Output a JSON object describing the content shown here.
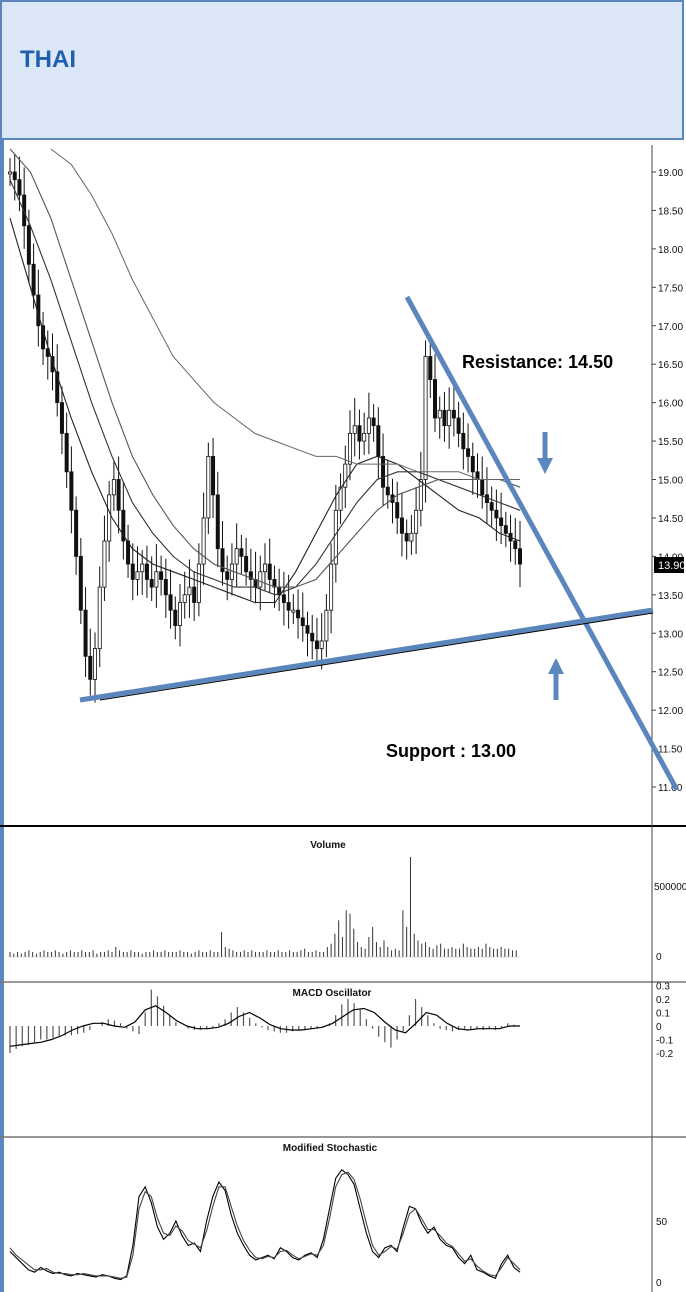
{
  "header": {
    "title": "THAI"
  },
  "colors": {
    "header_bg": "#dbe7f6",
    "header_border": "#5b86bd",
    "title": "#1f5fae",
    "trendline": "#5b86bd"
  },
  "chart_data": [
    {
      "type": "candlestick",
      "panel": "price",
      "ylim": [
        10.9,
        19.3
      ],
      "yticks": [
        "19.00",
        "18.50",
        "18.00",
        "17.50",
        "17.00",
        "16.50",
        "16.00",
        "15.50",
        "15.00",
        "14.50",
        "14.00",
        "13.50",
        "13.00",
        "12.50",
        "12.00",
        "11.50",
        "11.00"
      ],
      "last_price_label": "13.90",
      "close_series": [
        19.0,
        18.9,
        18.7,
        18.3,
        17.8,
        17.4,
        17.0,
        16.7,
        16.6,
        16.4,
        16.0,
        15.6,
        15.1,
        14.6,
        14.0,
        13.3,
        12.7,
        12.4,
        12.8,
        13.6,
        14.2,
        14.8,
        15.0,
        14.6,
        14.2,
        13.9,
        13.7,
        13.8,
        13.9,
        13.7,
        13.6,
        13.8,
        13.7,
        13.5,
        13.3,
        13.1,
        13.4,
        13.5,
        13.6,
        13.4,
        13.9,
        14.5,
        15.3,
        14.8,
        14.1,
        13.8,
        13.7,
        13.9,
        14.1,
        14.0,
        13.8,
        13.7,
        13.6,
        13.8,
        13.9,
        13.7,
        13.6,
        13.5,
        13.4,
        13.3,
        13.3,
        13.2,
        13.1,
        13.0,
        12.9,
        12.8,
        12.9,
        13.3,
        13.9,
        14.6,
        14.9,
        15.2,
        15.6,
        15.7,
        15.5,
        15.6,
        15.8,
        15.7,
        15.3,
        14.9,
        14.8,
        14.7,
        14.5,
        14.3,
        14.2,
        14.3,
        14.6,
        15.0,
        16.6,
        16.3,
        15.8,
        15.9,
        15.7,
        15.9,
        15.8,
        15.6,
        15.4,
        15.3,
        15.1,
        15.0,
        14.8,
        14.7,
        14.6,
        14.5,
        14.4,
        14.3,
        14.2,
        14.1,
        13.9
      ],
      "moving_averages": [
        {
          "values": [
            18.4,
            17.5,
            16.6,
            15.8,
            15.1,
            14.5,
            14.1,
            13.9,
            13.8,
            13.7,
            13.6,
            13.5,
            13.4,
            13.4,
            13.8,
            14.3,
            14.8,
            15.2,
            15.3,
            15.2,
            15.0,
            14.8,
            14.6,
            14.5,
            14.3,
            14.2
          ]
        },
        {
          "values": [
            18.9,
            18.3,
            17.6,
            16.8,
            16.0,
            15.3,
            14.7,
            14.3,
            14.0,
            13.8,
            13.7,
            13.6,
            13.6,
            13.5,
            13.6,
            13.9,
            14.3,
            14.7,
            15.0,
            15.1,
            15.1,
            15.0,
            14.9,
            14.8,
            14.7,
            14.6
          ]
        },
        {
          "values": [
            19.3,
            19.0,
            18.4,
            17.6,
            16.8,
            16.0,
            15.3,
            14.8,
            14.4,
            14.1,
            13.9,
            13.8,
            13.7,
            13.6,
            13.6,
            13.7,
            14.0,
            14.3,
            14.6,
            14.8,
            14.9,
            15.0,
            15.0,
            15.0,
            15.0,
            14.9
          ]
        },
        {
          "values": [
            null,
            null,
            19.3,
            19.1,
            18.7,
            18.2,
            17.6,
            17.1,
            16.6,
            16.3,
            16.0,
            15.8,
            15.6,
            15.5,
            15.4,
            15.3,
            15.3,
            15.2,
            15.2,
            15.2,
            15.1,
            15.1,
            15.1,
            15.0,
            15.0,
            15.0
          ]
        }
      ],
      "trendlines": [
        {
          "label": "Resistance",
          "value": 14.5
        },
        {
          "label": "Support",
          "value": 13.0
        }
      ],
      "annotations": {
        "resistance_text": "Resistance:  14.50",
        "support_text": "Support :  13.00"
      }
    },
    {
      "type": "bar",
      "panel": "volume",
      "title": "Volume",
      "yticks": [
        "500000",
        "0"
      ],
      "values": [
        3,
        2,
        3,
        2,
        3,
        4,
        3,
        2,
        3,
        4,
        3,
        3,
        4,
        3,
        2,
        3,
        4,
        3,
        3,
        4,
        3,
        3,
        4,
        2,
        3,
        3,
        4,
        3,
        6,
        4,
        3,
        3,
        4,
        3,
        3,
        2,
        3,
        3,
        4,
        3,
        3,
        4,
        3,
        3,
        3,
        4,
        3,
        3,
        2,
        3,
        4,
        3,
        3,
        4,
        3,
        3,
        15,
        6,
        5,
        4,
        3,
        3,
        4,
        3,
        4,
        3,
        3,
        3,
        4,
        3,
        3,
        4,
        3,
        3,
        4,
        3,
        3,
        4,
        5,
        3,
        3,
        4,
        3,
        3,
        6,
        8,
        14,
        22,
        12,
        28,
        26,
        17,
        9,
        6,
        5,
        12,
        18,
        9,
        6,
        10,
        6,
        4,
        5,
        4,
        28,
        18,
        60,
        14,
        10,
        8,
        9,
        6,
        5,
        7,
        8,
        5,
        5,
        6,
        5,
        5,
        8,
        6,
        5,
        5,
        6,
        5,
        8,
        6,
        5,
        5,
        6,
        5,
        5,
        4,
        4
      ]
    },
    {
      "type": "bar",
      "panel": "macd",
      "title": "MACD Oscillator",
      "yticks": [
        "0.3",
        "0.2",
        "0.1",
        "0",
        "-0.1",
        "-0.2"
      ],
      "ylim": [
        -0.3,
        0.35
      ],
      "values": [
        -0.2,
        -0.17,
        -0.15,
        -0.14,
        -0.12,
        -0.1,
        -0.1,
        -0.09,
        -0.08,
        -0.07,
        -0.07,
        -0.06,
        -0.05,
        -0.03,
        0.0,
        0.03,
        0.05,
        0.04,
        0.02,
        -0.02,
        -0.04,
        -0.06,
        0.1,
        0.27,
        0.22,
        0.15,
        0.08,
        0.03,
        0.0,
        -0.02,
        -0.03,
        -0.03,
        -0.02,
        -0.01,
        0.02,
        0.05,
        0.1,
        0.14,
        0.1,
        0.06,
        0.02,
        -0.01,
        -0.03,
        -0.04,
        -0.05,
        -0.05,
        -0.04,
        -0.03,
        -0.03,
        -0.02,
        -0.02,
        -0.01,
        0.02,
        0.08,
        0.16,
        0.2,
        0.17,
        0.12,
        0.05,
        -0.02,
        -0.08,
        -0.12,
        -0.16,
        -0.1,
        -0.04,
        0.08,
        0.2,
        0.14,
        0.08,
        0.02,
        -0.02,
        -0.03,
        -0.04,
        -0.03,
        -0.02,
        -0.03,
        -0.02,
        -0.03,
        -0.02,
        -0.03,
        -0.01,
        0.02,
        0.01
      ],
      "signal": [
        -0.15,
        -0.14,
        -0.13,
        -0.12,
        -0.1,
        -0.07,
        -0.03,
        0.0,
        0.02,
        0.02,
        0.0,
        -0.01,
        0.03,
        0.12,
        0.15,
        0.1,
        0.04,
        0.0,
        -0.02,
        -0.02,
        -0.01,
        0.02,
        0.07,
        0.1,
        0.06,
        0.01,
        -0.02,
        -0.03,
        -0.03,
        -0.02,
        -0.01,
        0.02,
        0.07,
        0.12,
        0.13,
        0.1,
        0.03,
        -0.03,
        -0.05,
        0.02,
        0.1,
        0.08,
        0.02,
        -0.02,
        -0.03,
        -0.02,
        -0.02,
        -0.02,
        0.0,
        0.0
      ]
    },
    {
      "type": "line",
      "panel": "stochastic",
      "title": "Modified Stochastic",
      "yticks": [
        "50",
        "0"
      ],
      "ylim": [
        0,
        100
      ],
      "series": [
        {
          "values": [
            25,
            20,
            15,
            10,
            8,
            12,
            9,
            7,
            8,
            6,
            5,
            7,
            6,
            5,
            4,
            6,
            5,
            3,
            2,
            5,
            30,
            70,
            78,
            65,
            45,
            35,
            40,
            50,
            38,
            30,
            32,
            25,
            50,
            70,
            82,
            75,
            55,
            40,
            30,
            22,
            18,
            20,
            22,
            19,
            28,
            25,
            20,
            18,
            22,
            24,
            20,
            35,
            60,
            85,
            92,
            88,
            80,
            60,
            40,
            25,
            20,
            28,
            30,
            25,
            45,
            62,
            60,
            48,
            40,
            45,
            35,
            30,
            28,
            20,
            15,
            22,
            10,
            8,
            5,
            3,
            15,
            22,
            12,
            8
          ]
        },
        {
          "values": [
            28,
            22,
            18,
            14,
            10,
            10,
            11,
            8,
            7,
            7,
            6,
            6,
            7,
            6,
            5,
            5,
            5,
            4,
            3,
            4,
            22,
            60,
            74,
            70,
            52,
            40,
            38,
            46,
            42,
            34,
            31,
            28,
            42,
            62,
            78,
            78,
            62,
            46,
            34,
            26,
            20,
            19,
            21,
            20,
            25,
            26,
            22,
            19,
            21,
            23,
            22,
            30,
            52,
            78,
            88,
            90,
            84,
            68,
            48,
            30,
            22,
            25,
            29,
            27,
            40,
            56,
            60,
            52,
            43,
            43,
            38,
            32,
            29,
            23,
            17,
            19,
            13,
            9,
            6,
            5,
            12,
            20,
            15,
            10
          ]
        }
      ]
    }
  ]
}
